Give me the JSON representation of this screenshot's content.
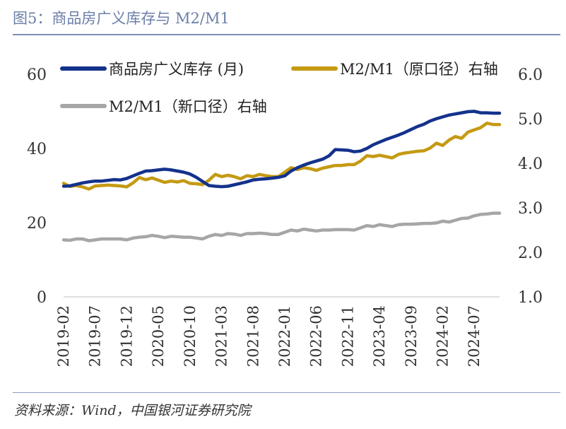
{
  "figure": {
    "title": "图5：商品房广义库存与 M2/M1",
    "source": "资料来源：Wind，中国银河证券研究院"
  },
  "chart_data": {
    "type": "line",
    "title": "",
    "x": [
      "2019-02",
      "2019-03",
      "2019-04",
      "2019-05",
      "2019-06",
      "2019-07",
      "2019-08",
      "2019-09",
      "2019-10",
      "2019-11",
      "2019-12",
      "2020-01",
      "2020-02",
      "2020-03",
      "2020-04",
      "2020-05",
      "2020-06",
      "2020-07",
      "2020-08",
      "2020-09",
      "2020-10",
      "2020-11",
      "2020-12",
      "2021-01",
      "2021-02",
      "2021-03",
      "2021-04",
      "2021-05",
      "2021-06",
      "2021-07",
      "2021-08",
      "2021-09",
      "2021-10",
      "2021-11",
      "2021-12",
      "2022-01",
      "2022-02",
      "2022-03",
      "2022-04",
      "2022-05",
      "2022-06",
      "2022-07",
      "2022-08",
      "2022-09",
      "2022-10",
      "2022-11",
      "2022-12",
      "2023-01",
      "2023-02",
      "2023-03",
      "2023-04",
      "2023-05",
      "2023-06",
      "2023-07",
      "2023-08",
      "2023-09",
      "2023-10",
      "2023-11",
      "2023-12",
      "2024-01",
      "2024-02",
      "2024-03",
      "2024-04",
      "2024-05",
      "2024-06",
      "2024-07",
      "2024-08",
      "2024-09",
      "2024-10",
      "2024-11"
    ],
    "x_tick_labels": [
      "2019-02",
      "2019-07",
      "2019-12",
      "2020-05",
      "2020-10",
      "2021-03",
      "2021-08",
      "2022-01",
      "2022-06",
      "2022-11",
      "2023-04",
      "2023-09",
      "2024-02",
      "2024-07"
    ],
    "y_left": {
      "min": 0,
      "max": 60,
      "ticks": [
        "0",
        "20",
        "40",
        "60"
      ]
    },
    "y_right": {
      "min": 1.0,
      "max": 6.0,
      "ticks": [
        "1.0",
        "2.0",
        "3.0",
        "4.0",
        "5.0",
        "6.0"
      ]
    },
    "grid": false,
    "legend_position": "top",
    "series": [
      {
        "name": "商品房广义库存 (月)",
        "axis": "left",
        "color": "#14328c",
        "values": [
          29.8,
          29.9,
          30.3,
          30.7,
          31.0,
          31.2,
          31.2,
          31.4,
          31.6,
          31.5,
          31.9,
          32.6,
          33.3,
          33.9,
          34.0,
          34.2,
          34.4,
          34.2,
          33.9,
          33.6,
          33.1,
          32.2,
          31.1,
          30.0,
          29.8,
          29.7,
          29.8,
          30.2,
          30.6,
          31.0,
          31.5,
          31.7,
          31.8,
          32.0,
          32.2,
          32.6,
          33.9,
          34.8,
          35.5,
          36.1,
          36.6,
          37.1,
          38.0,
          39.7,
          39.6,
          39.5,
          39.1,
          39.3,
          40.0,
          41.0,
          41.7,
          42.4,
          43.0,
          43.6,
          44.3,
          45.1,
          45.9,
          46.5,
          47.4,
          48.0,
          48.5,
          49.0,
          49.3,
          49.6,
          49.9,
          50.0,
          49.6,
          49.6,
          49.5,
          49.5
        ]
      },
      {
        "name": "M2/M1（原口径）右轴",
        "axis": "right",
        "color": "#c49a12",
        "values": [
          3.55,
          3.48,
          3.5,
          3.47,
          3.42,
          3.49,
          3.5,
          3.51,
          3.5,
          3.49,
          3.47,
          3.56,
          3.68,
          3.63,
          3.67,
          3.62,
          3.57,
          3.6,
          3.58,
          3.61,
          3.55,
          3.54,
          3.52,
          3.62,
          3.75,
          3.7,
          3.73,
          3.7,
          3.65,
          3.72,
          3.7,
          3.75,
          3.72,
          3.7,
          3.7,
          3.8,
          3.9,
          3.86,
          3.9,
          3.88,
          3.84,
          3.89,
          3.92,
          3.95,
          3.95,
          3.97,
          3.97,
          4.05,
          4.17,
          4.15,
          4.18,
          4.15,
          4.12,
          4.2,
          4.23,
          4.25,
          4.27,
          4.28,
          4.34,
          4.45,
          4.4,
          4.52,
          4.6,
          4.56,
          4.7,
          4.75,
          4.8,
          4.9,
          4.87,
          4.87
        ]
      },
      {
        "name": "M2/M1（新口径）右轴",
        "axis": "right",
        "color": "#a6a6a6",
        "values": [
          2.28,
          2.27,
          2.3,
          2.3,
          2.26,
          2.28,
          2.3,
          2.3,
          2.3,
          2.3,
          2.28,
          2.32,
          2.34,
          2.35,
          2.38,
          2.36,
          2.33,
          2.36,
          2.35,
          2.34,
          2.34,
          2.32,
          2.3,
          2.36,
          2.4,
          2.38,
          2.42,
          2.41,
          2.38,
          2.42,
          2.42,
          2.43,
          2.42,
          2.4,
          2.4,
          2.45,
          2.5,
          2.48,
          2.52,
          2.5,
          2.48,
          2.5,
          2.5,
          2.51,
          2.51,
          2.51,
          2.5,
          2.55,
          2.6,
          2.58,
          2.62,
          2.6,
          2.58,
          2.62,
          2.63,
          2.63,
          2.64,
          2.65,
          2.65,
          2.66,
          2.7,
          2.68,
          2.72,
          2.76,
          2.77,
          2.82,
          2.85,
          2.86,
          2.88,
          2.88
        ]
      }
    ]
  }
}
